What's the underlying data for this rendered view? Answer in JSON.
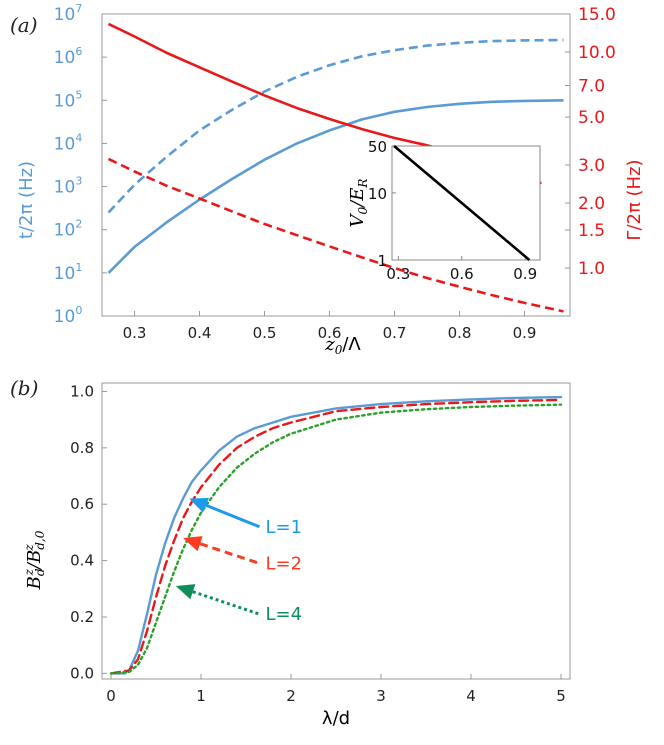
{
  "panel_a": {
    "tag": "(a)",
    "left_axis_title": "t/2π (Hz)",
    "right_axis_title": "Γ/2π (Hz)",
    "xlabel_main": "z",
    "xlabel_sub": "0",
    "xlabel_rest": "/Λ",
    "left_color": "#5b9bd5",
    "right_color": "#e8191a",
    "inset": {
      "ylabel_main": "V",
      "ylabel_sub": "0",
      "ylabel_mid": "/E",
      "ylabel_sub2": "R"
    }
  },
  "panel_b": {
    "tag": "(b)",
    "ylabel_html": "B",
    "xlabel": "λ/d",
    "ylabel_p1": "B",
    "ylabel_sub1": "d",
    "ylabel_sup1": "z",
    "ylabel_slash": "/B",
    "ylabel_sub2": "d,0",
    "ylabel_sup2": "z"
  },
  "chart_data": [
    {
      "type": "line",
      "panel": "a",
      "xlim": [
        0.25,
        0.97
      ],
      "x_ticks": [
        "0.3",
        "0.4",
        "0.5",
        "0.6",
        "0.7",
        "0.8",
        "0.9"
      ],
      "y_left": {
        "scale": "log",
        "lim": [
          1,
          10000000
        ],
        "ticks": [
          {
            "value": 1,
            "base": "10",
            "exp": "0"
          },
          {
            "value": 10,
            "base": "10",
            "exp": "1"
          },
          {
            "value": 100,
            "base": "10",
            "exp": "2"
          },
          {
            "value": 1000,
            "base": "10",
            "exp": "3"
          },
          {
            "value": 10000,
            "base": "10",
            "exp": "4"
          },
          {
            "value": 100000,
            "base": "10",
            "exp": "5"
          },
          {
            "value": 1000000,
            "base": "10",
            "exp": "6"
          },
          {
            "value": 10000000,
            "base": "10",
            "exp": "7"
          }
        ]
      },
      "y_right": {
        "scale": "log",
        "lim": [
          0.6,
          15.0
        ],
        "ticks": [
          "1.0",
          "1.5",
          "2.0",
          "3.0",
          "5.0",
          "7.0",
          "10.0",
          "15.0"
        ]
      },
      "series": [
        {
          "axis": "left",
          "style": "solid",
          "color": "#5b9bd5",
          "x": [
            0.26,
            0.3,
            0.35,
            0.4,
            0.45,
            0.5,
            0.55,
            0.6,
            0.65,
            0.7,
            0.75,
            0.8,
            0.85,
            0.9,
            0.96
          ],
          "y": [
            10,
            40,
            150,
            500,
            1500,
            4200,
            10000,
            20000,
            36000,
            54000,
            70000,
            83000,
            92000,
            97000,
            100000
          ]
        },
        {
          "axis": "left",
          "style": "dashed",
          "color": "#5b9bd5",
          "x": [
            0.26,
            0.3,
            0.35,
            0.4,
            0.45,
            0.5,
            0.55,
            0.6,
            0.65,
            0.7,
            0.75,
            0.8,
            0.85,
            0.9,
            0.96
          ],
          "y": [
            250,
            1100,
            5000,
            20000,
            60000,
            160000,
            350000,
            650000,
            1050000,
            1450000,
            1850000,
            2150000,
            2350000,
            2450000,
            2500000
          ]
        },
        {
          "axis": "right",
          "style": "solid",
          "color": "#e8191a",
          "x": [
            0.26,
            0.3,
            0.35,
            0.4,
            0.45,
            0.5,
            0.55,
            0.6,
            0.65,
            0.7,
            0.75,
            0.77
          ],
          "y": [
            13.5,
            11.8,
            9.9,
            8.5,
            7.3,
            6.3,
            5.5,
            4.9,
            4.4,
            4.0,
            3.7,
            3.55
          ]
        },
        {
          "axis": "right",
          "style": "solid",
          "color": "#e8191a",
          "x": [
            0.92,
            0.925
          ],
          "y": [
            2.6,
            2.45
          ]
        },
        {
          "axis": "right",
          "style": "dashed",
          "color": "#e8191a",
          "x": [
            0.26,
            0.3,
            0.35,
            0.4,
            0.45,
            0.5,
            0.55,
            0.6,
            0.65,
            0.7,
            0.75,
            0.8,
            0.85,
            0.9,
            0.96
          ],
          "y": [
            3.2,
            2.8,
            2.4,
            2.1,
            1.83,
            1.6,
            1.42,
            1.26,
            1.12,
            1.0,
            0.9,
            0.82,
            0.75,
            0.69,
            0.63
          ]
        }
      ]
    },
    {
      "type": "line",
      "panel": "a-inset",
      "xlim": [
        0.27,
        0.97
      ],
      "ylim": [
        1,
        50
      ],
      "yscale": "log",
      "x_ticks": [
        "0.3",
        "0.6",
        "0.9"
      ],
      "y_ticks": [
        "1",
        "10",
        "50"
      ],
      "series": [
        {
          "style": "solid",
          "color": "#000000",
          "x": [
            0.28,
            0.92
          ],
          "y": [
            50,
            1
          ]
        }
      ]
    },
    {
      "type": "line",
      "panel": "b",
      "xlim": [
        -0.1,
        5.1
      ],
      "ylim": [
        -0.02,
        1.03
      ],
      "x_ticks": [
        "0",
        "1",
        "2",
        "3",
        "4",
        "5"
      ],
      "y_ticks": [
        "0.0",
        "0.2",
        "0.4",
        "0.6",
        "0.8",
        "1.0"
      ],
      "series": [
        {
          "name": "L=1",
          "style": "solid",
          "color": "#5b9bd5",
          "x": [
            0,
            0.15,
            0.2,
            0.3,
            0.4,
            0.5,
            0.6,
            0.7,
            0.8,
            0.9,
            1.0,
            1.2,
            1.4,
            1.6,
            1.8,
            2.0,
            2.5,
            3.0,
            3.5,
            4.0,
            4.5,
            5.0
          ],
          "y": [
            0,
            0.0,
            0.01,
            0.08,
            0.21,
            0.35,
            0.46,
            0.55,
            0.62,
            0.68,
            0.72,
            0.79,
            0.84,
            0.87,
            0.89,
            0.91,
            0.94,
            0.955,
            0.965,
            0.972,
            0.977,
            0.98
          ]
        },
        {
          "name": "L=2",
          "style": "dashed",
          "color": "#e8191a",
          "x": [
            0,
            0.2,
            0.3,
            0.4,
            0.5,
            0.6,
            0.7,
            0.8,
            0.9,
            1.0,
            1.2,
            1.4,
            1.6,
            1.8,
            2.0,
            2.5,
            3.0,
            3.5,
            4.0,
            4.5,
            5.0
          ],
          "y": [
            0,
            0.01,
            0.05,
            0.15,
            0.27,
            0.38,
            0.47,
            0.55,
            0.61,
            0.66,
            0.74,
            0.8,
            0.84,
            0.87,
            0.89,
            0.93,
            0.945,
            0.955,
            0.962,
            0.967,
            0.97
          ]
        },
        {
          "name": "L=4",
          "style": "dotted",
          "color": "#2ca02c",
          "x": [
            0,
            0.2,
            0.3,
            0.4,
            0.5,
            0.6,
            0.7,
            0.8,
            0.9,
            1.0,
            1.2,
            1.4,
            1.6,
            1.8,
            2.0,
            2.5,
            3.0,
            3.5,
            4.0,
            4.5,
            5.0
          ],
          "y": [
            0,
            0.005,
            0.03,
            0.09,
            0.18,
            0.27,
            0.36,
            0.44,
            0.51,
            0.57,
            0.66,
            0.73,
            0.78,
            0.82,
            0.85,
            0.9,
            0.925,
            0.937,
            0.945,
            0.95,
            0.953
          ]
        }
      ],
      "annotations": [
        {
          "text": "L=1",
          "color": "#1e9be8",
          "style": "solid",
          "arrow_to": [
            0.87,
            0.62
          ],
          "label_at": [
            1.65,
            0.52
          ]
        },
        {
          "text": "L=2",
          "color": "#ff3b1f",
          "style": "dashed",
          "arrow_to": [
            0.8,
            0.48
          ],
          "label_at": [
            1.65,
            0.39
          ]
        },
        {
          "text": "L=4",
          "color": "#0e8f5a",
          "style": "dotted",
          "arrow_to": [
            0.72,
            0.31
          ],
          "label_at": [
            1.65,
            0.21
          ]
        }
      ]
    }
  ]
}
